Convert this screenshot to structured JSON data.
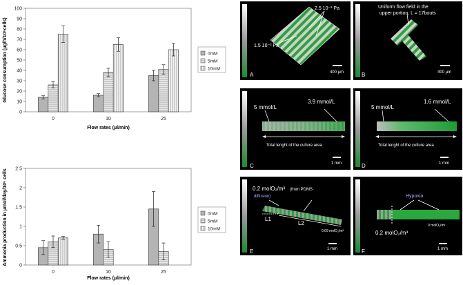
{
  "chart_data": [
    {
      "type": "bar",
      "ylabel": "Glucose consumption (µg/h/10⁶cells)",
      "xlabel": "Flow rates (µl/min)",
      "categories": [
        "0",
        "10",
        "25"
      ],
      "ylim": [
        0,
        100
      ],
      "yticks": [
        "0",
        "10",
        "20",
        "30",
        "40",
        "50",
        "60",
        "70",
        "80",
        "90",
        "100"
      ],
      "legend_position": "right",
      "series": [
        {
          "name": "0mM",
          "values": [
            14,
            16,
            35
          ],
          "errors": [
            1.5,
            1.5,
            5
          ]
        },
        {
          "name": "5mM",
          "values": [
            26,
            38,
            41
          ],
          "errors": [
            3,
            4,
            4.5
          ]
        },
        {
          "name": "10mM",
          "values": [
            75,
            65,
            60
          ],
          "errors": [
            8,
            6.5,
            6
          ]
        }
      ]
    },
    {
      "type": "bar",
      "ylabel": "Ammonia production in µmol/day/10⁶ cells",
      "xlabel": "Flow rates (µl/min)",
      "categories": [
        "0",
        "10",
        "25"
      ],
      "ylim": [
        0,
        2.5
      ],
      "yticks": [
        "0",
        "0.5",
        "1",
        "1.5",
        "2",
        "2.5"
      ],
      "legend_position": "right",
      "series": [
        {
          "name": "0mM",
          "values": [
            0.45,
            0.8,
            1.45
          ],
          "errors": [
            0.18,
            0.23,
            0.45
          ]
        },
        {
          "name": "5mM",
          "values": [
            0.6,
            0.4,
            0.35
          ],
          "errors": [
            0.15,
            0.2,
            0.22
          ]
        },
        {
          "name": "10mM",
          "values": [
            0.7,
            0,
            0
          ],
          "errors": [
            0.04,
            0,
            0
          ]
        }
      ]
    }
  ],
  "panels": [
    {
      "id": "A",
      "labels": [
        "2.5 10⁻³ Pa",
        "1.5 10⁻³ Pa"
      ],
      "scale": "400 µm"
    },
    {
      "id": "B",
      "labels": [
        "Uniform flow field in the",
        "upper portion, L = 17bouts"
      ],
      "scale": "400 µm"
    },
    {
      "id": "C",
      "labels": [
        "5 mmol/L",
        "3.9 mmol/L",
        "Total lenght of the culture area"
      ],
      "scale": "1 mm"
    },
    {
      "id": "D",
      "labels": [
        "5 mmol/L",
        "1.6 mmol/L",
        "Total lenght of the culture area"
      ],
      "scale": "1 mm"
    },
    {
      "id": "E",
      "labels": [
        "0.2 molO₂/m³",
        "(from PDMS",
        "diffusion)",
        "L1",
        "L2",
        "0.09 molO₂/m³"
      ],
      "scale": "1 mm"
    },
    {
      "id": "F",
      "labels": [
        "Hypoxia",
        "0.2 molO₂/m³",
        "0 molO₂/m³"
      ],
      "scale": "1 mm"
    }
  ],
  "colors": {
    "bar_0mM": "#b4b4b4",
    "bar_5mM": "#ececec",
    "bar_10mM": "#f4f4f4",
    "sim_bg": "#000000",
    "sim_green": "#27a83c",
    "sim_grey": "#9a9a9a",
    "sim_label": "#ffffff",
    "sim_label_purple": "#b8a8ff"
  }
}
